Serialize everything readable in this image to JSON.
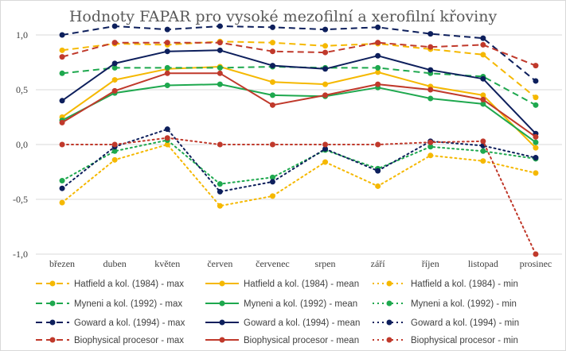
{
  "chart_data": {
    "type": "line",
    "title": "Hodnoty FAPAR pro vysoké mezofilní a xerofilní křoviny",
    "xlabel": "",
    "ylabel": "",
    "categories": [
      "březen",
      "duben",
      "květen",
      "červen",
      "červenec",
      "srpen",
      "září",
      "říjen",
      "listopad",
      "prosinec"
    ],
    "ylim": [
      -1.0,
      1.0
    ],
    "yticks": [
      {
        "value": 1.0,
        "label": "1,0"
      },
      {
        "value": 0.5,
        "label": "0,5"
      },
      {
        "value": 0.0,
        "label": "0,0"
      },
      {
        "value": -0.5,
        "label": "-0,5"
      },
      {
        "value": -1.0,
        "label": "-1,0"
      }
    ],
    "grid": true,
    "legend_position": "bottom",
    "series": [
      {
        "name": "Hatfield a kol. (1984) - max",
        "color": "#f5b800",
        "style": "dashed",
        "values": [
          0.86,
          0.92,
          0.91,
          0.94,
          0.93,
          0.9,
          0.92,
          0.87,
          0.82,
          0.43
        ]
      },
      {
        "name": "Hatfield a kol. (1984) - mean",
        "color": "#f5b800",
        "style": "solid",
        "values": [
          0.25,
          0.59,
          0.69,
          0.71,
          0.57,
          0.55,
          0.66,
          0.53,
          0.45,
          -0.03
        ]
      },
      {
        "name": "Hatfield a kol. (1984) - min",
        "color": "#f5b800",
        "style": "dotted",
        "values": [
          -0.53,
          -0.14,
          0.0,
          -0.56,
          -0.47,
          -0.16,
          -0.38,
          -0.1,
          -0.15,
          -0.26
        ]
      },
      {
        "name": "Myneni a kol. (1992) - max",
        "color": "#1ea84e",
        "style": "dashed",
        "values": [
          0.65,
          0.7,
          0.7,
          0.7,
          0.71,
          0.7,
          0.7,
          0.65,
          0.62,
          0.36
        ]
      },
      {
        "name": "Myneni a kol. (1992) - mean",
        "color": "#1ea84e",
        "style": "solid",
        "values": [
          0.22,
          0.47,
          0.54,
          0.55,
          0.45,
          0.44,
          0.52,
          0.42,
          0.37,
          0.02
        ]
      },
      {
        "name": "Myneni a kol. (1992) - min",
        "color": "#1ea84e",
        "style": "dotted",
        "values": [
          -0.33,
          -0.06,
          0.04,
          -0.36,
          -0.3,
          -0.05,
          -0.22,
          -0.02,
          -0.06,
          -0.13
        ]
      },
      {
        "name": "Goward a kol. (1994) - max",
        "color": "#0d1f5c",
        "style": "dashed",
        "values": [
          1.0,
          1.08,
          1.05,
          1.08,
          1.07,
          1.05,
          1.07,
          1.01,
          0.97,
          0.58
        ]
      },
      {
        "name": "Goward a kol. (1994) - mean",
        "color": "#0d1f5c",
        "style": "solid",
        "values": [
          0.4,
          0.74,
          0.85,
          0.86,
          0.72,
          0.69,
          0.81,
          0.68,
          0.6,
          0.1
        ]
      },
      {
        "name": "Goward a kol. (1994) - min",
        "color": "#0d1f5c",
        "style": "dotted",
        "values": [
          -0.4,
          -0.02,
          0.14,
          -0.43,
          -0.34,
          -0.04,
          -0.24,
          0.03,
          -0.01,
          -0.12
        ]
      },
      {
        "name": "Biophysical procesor - max",
        "color": "#c0392b",
        "style": "dashed",
        "values": [
          0.8,
          0.93,
          0.93,
          0.93,
          0.85,
          0.84,
          0.93,
          0.89,
          0.91,
          0.72
        ]
      },
      {
        "name": "Biophysical procesor - mean",
        "color": "#c0392b",
        "style": "solid",
        "values": [
          0.2,
          0.49,
          0.65,
          0.65,
          0.36,
          0.45,
          0.55,
          0.5,
          0.41,
          0.07
        ]
      },
      {
        "name": "Biophysical procesor - min",
        "color": "#c0392b",
        "style": "dotted",
        "values": [
          0.0,
          0.0,
          0.06,
          0.0,
          0.0,
          0.0,
          0.0,
          0.02,
          0.03,
          -1.0
        ]
      }
    ]
  }
}
